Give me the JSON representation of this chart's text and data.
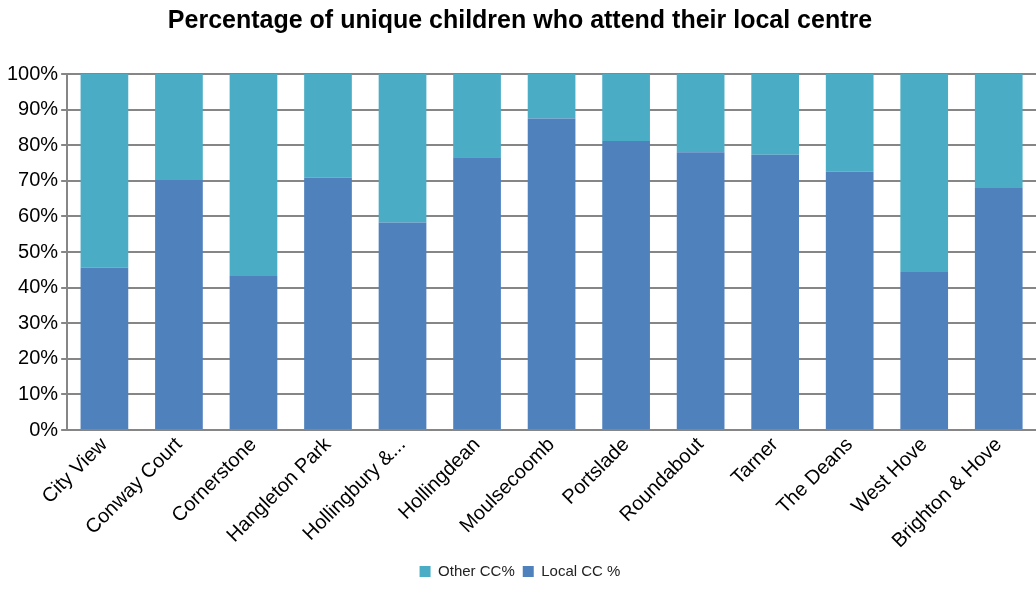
{
  "chart_data": {
    "type": "bar",
    "title": "Percentage of unique children who attend their local centre",
    "categories": [
      "City View",
      "Conway Court",
      "Cornerstone",
      "Hangleton Park",
      "Hollingbury &...",
      "Hollingdean",
      "Moulsecoomb",
      "Portslade",
      "Roundabout",
      "Tarner",
      "The Deans",
      "West Hove",
      "Brighton & Hove"
    ],
    "stacked": true,
    "series": [
      {
        "name": "Local CC %",
        "color": "#4f81bd",
        "values": [
          45.6,
          70.2,
          43.3,
          70.9,
          58.3,
          76.6,
          87.5,
          81.2,
          78.0,
          77.3,
          72.6,
          44.4,
          68.0
        ]
      },
      {
        "name": "Other CC%",
        "color": "#4bacc6",
        "values": [
          54.4,
          29.8,
          56.7,
          29.1,
          41.7,
          23.4,
          12.5,
          18.8,
          22.0,
          22.7,
          27.4,
          55.6,
          32.0
        ]
      }
    ],
    "ylim": [
      0,
      100
    ],
    "yticks": [
      {
        "value": 0,
        "label": "0%"
      },
      {
        "value": 10,
        "label": "10%"
      },
      {
        "value": 20,
        "label": "20%"
      },
      {
        "value": 30,
        "label": "30%"
      },
      {
        "value": 40,
        "label": "40%"
      },
      {
        "value": 50,
        "label": "50%"
      },
      {
        "value": 60,
        "label": "60%"
      },
      {
        "value": 70,
        "label": "70%"
      },
      {
        "value": 80,
        "label": "80%"
      },
      {
        "value": 90,
        "label": "90%"
      },
      {
        "value": 100,
        "label": "100%"
      }
    ],
    "grid": "y",
    "legend": "bottom"
  }
}
